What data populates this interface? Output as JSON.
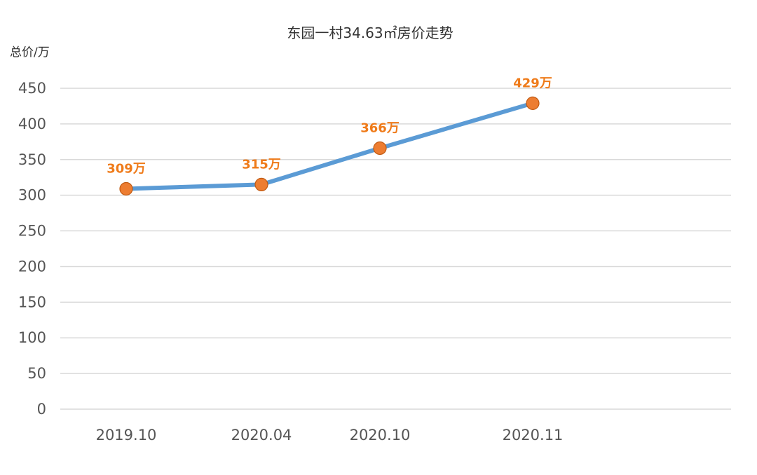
{
  "chart_data": {
    "type": "line",
    "title": "东园一村34.63㎡房价走势",
    "ylabel": "总价/万",
    "xlabel": "",
    "categories": [
      "2019.10",
      "2020.04",
      "2020.10",
      "2020.11"
    ],
    "series": [
      {
        "values": [
          309,
          315,
          366,
          429
        ],
        "data_labels": [
          "309万",
          "315万",
          "366万",
          "429万"
        ],
        "line_color": "#5b9bd5",
        "marker_color": "#ed7d31"
      }
    ],
    "yticks": [
      "0",
      "50",
      "100",
      "150",
      "200",
      "250",
      "300",
      "350",
      "400",
      "450"
    ],
    "ylim": [
      0,
      450
    ],
    "grid": true,
    "label_color": "#ef7b1a"
  }
}
